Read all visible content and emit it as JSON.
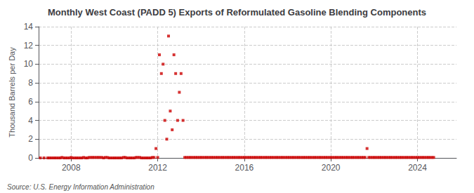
{
  "chart_data": {
    "type": "scatter",
    "title": "Monthly West Coast (PADD 5) Exports of Reformulated Gasoline Blending Components",
    "ylabel": "Thousand Barrels per Day",
    "annotations": [
      "Source: U.S. Energy Information Administration"
    ],
    "color": "#cc0000",
    "marker": "square",
    "grid": true,
    "xlim": [
      2006.5,
      2025.8
    ],
    "xticks": [
      2008,
      2012,
      2016,
      2020,
      2024
    ],
    "ylim": [
      0,
      14
    ],
    "yticks": [
      0,
      2,
      4,
      6,
      8,
      10,
      12,
      14
    ],
    "x": [
      2006.58,
      2006.75,
      2006.92,
      2007.0,
      2007.08,
      2007.17,
      2007.25,
      2007.33,
      2007.42,
      2007.5,
      2007.58,
      2007.67,
      2007.75,
      2007.83,
      2007.92,
      2008.0,
      2008.08,
      2008.17,
      2008.25,
      2008.33,
      2008.42,
      2008.5,
      2008.58,
      2008.67,
      2008.75,
      2008.83,
      2008.92,
      2009.0,
      2009.08,
      2009.17,
      2009.25,
      2009.33,
      2009.42,
      2009.5,
      2009.58,
      2009.67,
      2009.75,
      2009.83,
      2009.92,
      2010.0,
      2010.08,
      2010.17,
      2010.25,
      2010.33,
      2010.42,
      2010.5,
      2010.58,
      2010.67,
      2010.75,
      2010.83,
      2010.92,
      2011.0,
      2011.08,
      2011.17,
      2011.25,
      2011.33,
      2011.42,
      2011.5,
      2011.58,
      2011.67,
      2011.75,
      2011.83,
      2011.92,
      2012.0,
      2012.08,
      2012.17,
      2012.25,
      2012.33,
      2012.42,
      2012.5,
      2012.58,
      2012.67,
      2012.75,
      2012.83,
      2012.92,
      2013.0,
      2013.08,
      2013.17,
      2013.25,
      2013.33,
      2013.42,
      2013.5,
      2013.58,
      2013.67,
      2013.75,
      2013.83,
      2013.92,
      2014.0,
      2014.08,
      2014.17,
      2014.25,
      2014.33,
      2014.42,
      2014.5,
      2014.58,
      2014.67,
      2014.75,
      2014.83,
      2014.92,
      2015.0,
      2015.08,
      2015.17,
      2015.25,
      2015.33,
      2015.42,
      2015.5,
      2015.58,
      2015.67,
      2015.75,
      2015.83,
      2015.92,
      2016.0,
      2016.08,
      2016.17,
      2016.25,
      2016.33,
      2016.42,
      2016.5,
      2016.58,
      2016.67,
      2016.75,
      2016.83,
      2016.92,
      2017.0,
      2017.08,
      2017.17,
      2017.25,
      2017.33,
      2017.42,
      2017.5,
      2017.58,
      2017.67,
      2017.75,
      2017.83,
      2017.92,
      2018.0,
      2018.08,
      2018.17,
      2018.25,
      2018.33,
      2018.42,
      2018.5,
      2018.58,
      2018.67,
      2018.75,
      2018.83,
      2018.92,
      2019.0,
      2019.08,
      2019.17,
      2019.25,
      2019.33,
      2019.42,
      2019.5,
      2019.58,
      2019.67,
      2019.75,
      2019.83,
      2019.92,
      2020.0,
      2020.08,
      2020.17,
      2020.25,
      2020.33,
      2020.42,
      2020.5,
      2020.58,
      2020.67,
      2020.75,
      2020.83,
      2020.92,
      2021.0,
      2021.08,
      2021.17,
      2021.25,
      2021.33,
      2021.42,
      2021.5,
      2021.58,
      2021.67,
      2021.75,
      2021.83,
      2021.92,
      2022.0,
      2022.08,
      2022.17,
      2022.25,
      2022.33,
      2022.42,
      2022.5,
      2022.58,
      2022.67,
      2022.75,
      2022.83,
      2022.92,
      2023.0,
      2023.08,
      2023.17,
      2023.25,
      2023.33,
      2023.42,
      2023.5,
      2023.58,
      2023.67,
      2023.75,
      2023.83,
      2023.92,
      2024.0,
      2024.08,
      2024.17,
      2024.25,
      2024.33,
      2024.42,
      2024.5,
      2024.58,
      2024.67,
      2024.75
    ],
    "values": [
      0.0,
      0.0,
      0.0,
      0.0,
      0.0,
      0.0,
      0.0,
      0.0,
      0.0,
      0.0,
      0.05,
      0.0,
      0.0,
      0.0,
      0.0,
      0.05,
      0.0,
      0.0,
      0.0,
      0.0,
      0.0,
      0.0,
      0.05,
      0.0,
      0.0,
      0.05,
      0.05,
      0.05,
      0.05,
      0.05,
      0.05,
      0.05,
      0.05,
      0.0,
      0.05,
      0.05,
      0.0,
      0.0,
      0.0,
      0.0,
      0.0,
      0.0,
      0.0,
      0.0,
      0.05,
      0.05,
      0.0,
      0.0,
      0.0,
      0.0,
      0.0,
      0.05,
      0.05,
      0.05,
      0.0,
      0.0,
      0.0,
      0.0,
      0.0,
      0.0,
      0.05,
      0.05,
      1.0,
      0.05,
      11.0,
      9.0,
      10.0,
      4.0,
      2.0,
      13.0,
      5.0,
      3.0,
      11.0,
      9.0,
      4.0,
      7.0,
      9.0,
      4.0,
      0.05,
      0.05,
      0.05,
      0.05,
      0.05,
      0.05,
      0.05,
      0.05,
      0.05,
      0.05,
      0.05,
      0.05,
      0.05,
      0.05,
      0.05,
      0.05,
      0.05,
      0.05,
      0.05,
      0.05,
      0.05,
      0.05,
      0.05,
      0.05,
      0.05,
      0.05,
      0.05,
      0.05,
      0.05,
      0.05,
      0.05,
      0.05,
      0.05,
      0.05,
      0.05,
      0.05,
      0.05,
      0.05,
      0.05,
      0.05,
      0.05,
      0.05,
      0.05,
      0.05,
      0.05,
      0.05,
      0.05,
      0.05,
      0.05,
      0.05,
      0.05,
      0.05,
      0.05,
      0.05,
      0.05,
      0.05,
      0.05,
      0.05,
      0.05,
      0.05,
      0.05,
      0.05,
      0.05,
      0.05,
      0.05,
      0.05,
      0.05,
      0.05,
      0.05,
      0.05,
      0.05,
      0.05,
      0.05,
      0.05,
      0.05,
      0.05,
      0.05,
      0.05,
      0.05,
      0.05,
      0.05,
      0.05,
      0.05,
      0.05,
      0.05,
      0.05,
      0.05,
      0.05,
      0.05,
      0.05,
      0.05,
      0.05,
      0.05,
      0.05,
      0.05,
      0.05,
      0.05,
      0.05,
      0.05,
      0.05,
      0.05,
      1.0,
      0.05,
      0.05,
      0.05,
      0.05,
      0.05,
      0.05,
      0.05,
      0.05,
      0.05,
      0.05,
      0.05,
      0.05,
      0.05,
      0.05,
      0.05,
      0.05,
      0.05,
      0.05,
      0.05,
      0.05,
      0.05,
      0.05,
      0.05,
      0.05,
      0.05,
      0.05,
      0.05,
      0.05,
      0.05,
      0.05,
      0.05,
      0.05,
      0.05,
      0.05,
      0.05,
      0.05,
      0.05
    ]
  }
}
